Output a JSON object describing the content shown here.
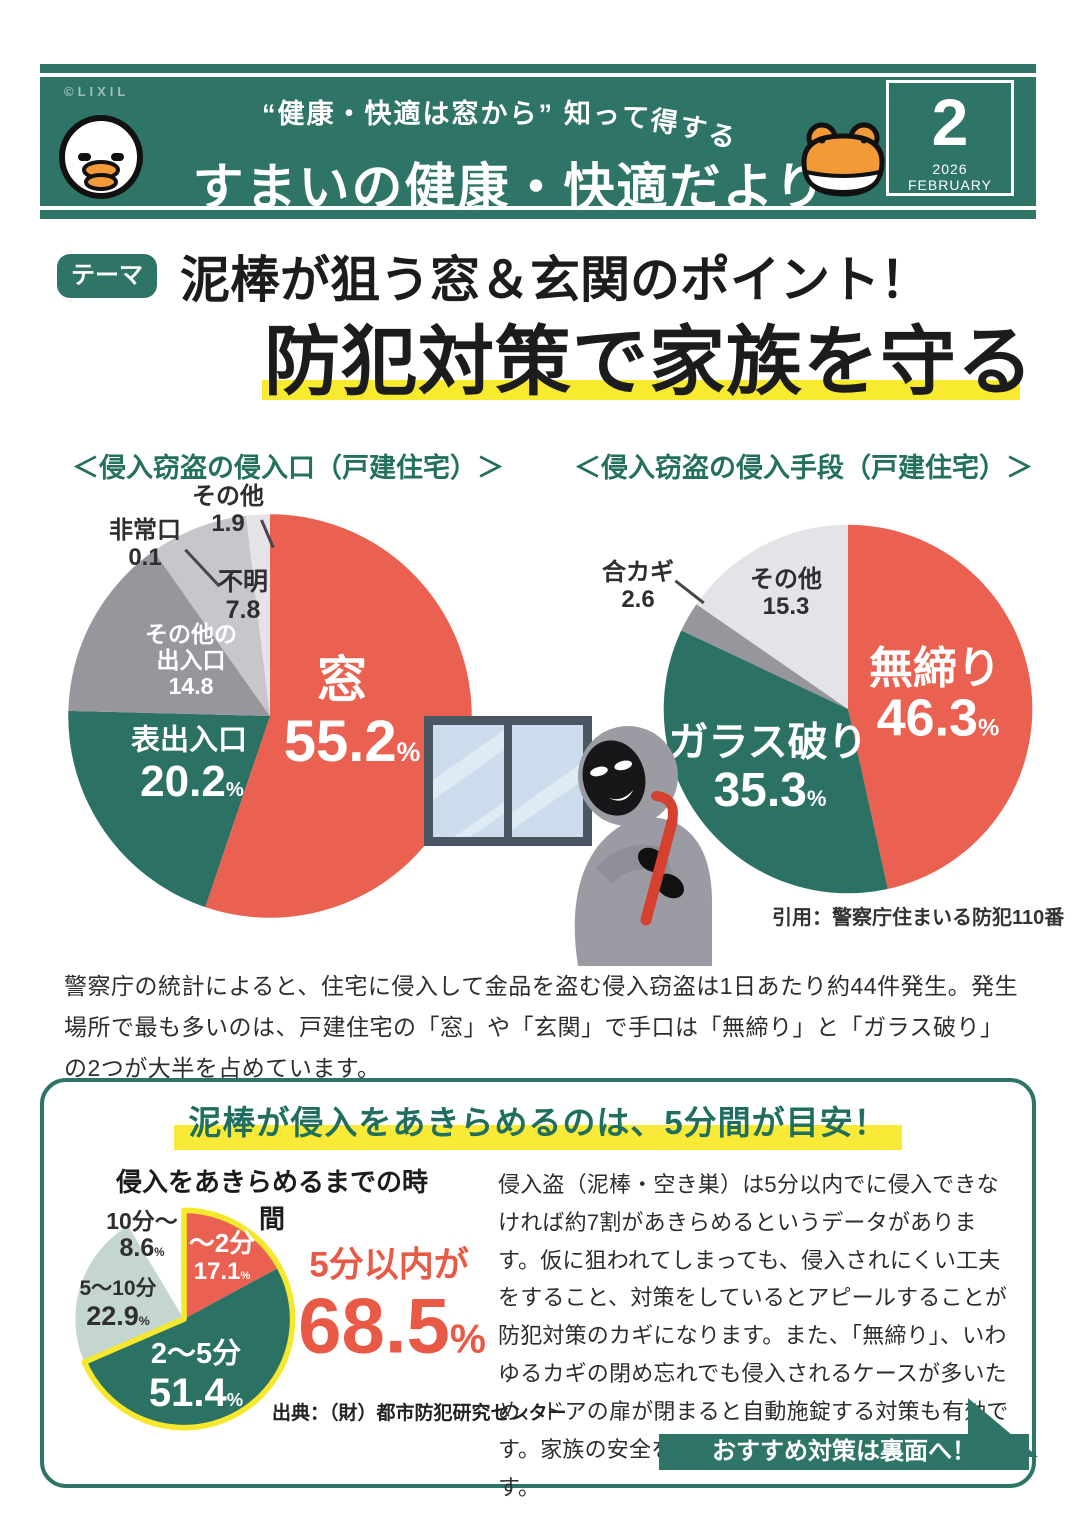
{
  "header": {
    "copyright": "©LIXIL",
    "subtitle_quote": "“健康・快適は窓から”",
    "subtitle_tail": "知って得する",
    "title": "すまいの健康・快適だより",
    "issue_number": "2",
    "issue_month": "2026 FEBRUARY",
    "icons": [
      "duck-mascot",
      "frog-mascot"
    ]
  },
  "theme": {
    "badge": "テーマ",
    "title_line1": "泥棒が狙う窓＆玄関のポイント！",
    "title_line2": "防犯対策で家族を守る"
  },
  "chart_data": [
    {
      "id": "entry-point",
      "type": "pie",
      "title": "＜侵入窃盗の侵入口（戸建住宅）＞",
      "unit": "%",
      "legend_position": "in-slice",
      "slices": [
        {
          "label": "窓",
          "value": 55.2,
          "color": "#ea6151"
        },
        {
          "label": "表出入口",
          "value": 20.2,
          "color": "#2b7164"
        },
        {
          "label": "その他の出入口",
          "value": 14.8,
          "color": "#98969d"
        },
        {
          "label": "非常口",
          "value": 0.1,
          "color": "#b9b8bd"
        },
        {
          "label": "不明",
          "value": 7.8,
          "color": "#c7c6cb"
        },
        {
          "label": "その他",
          "value": 1.9,
          "color": "#e4e3e7"
        }
      ],
      "label_lines": {
        "other_door_l1": "その他の",
        "other_door_l2": "出入口"
      }
    },
    {
      "id": "method",
      "type": "pie",
      "title": "＜侵入窃盗の侵入手段（戸建住宅）＞",
      "unit": "%",
      "legend_position": "in-slice",
      "slices": [
        {
          "label": "無締り",
          "value": 46.3,
          "color": "#ea6151"
        },
        {
          "label": "ガラス破り",
          "value": 35.3,
          "color": "#2b7164"
        },
        {
          "label": "合カギ",
          "value": 2.6,
          "color": "#98969d"
        },
        {
          "label": "その他",
          "value": 15.3,
          "color": "#e4e3e7"
        }
      ]
    },
    {
      "id": "give-up-time",
      "type": "pie",
      "title": "侵入をあきらめるまでの時間",
      "unit": "%",
      "legend_position": "in-slice",
      "slices": [
        {
          "label": "〜2分",
          "value": 17.1,
          "color": "#ea6151"
        },
        {
          "label": "2〜5分",
          "value": 51.4,
          "color": "#2b7164"
        },
        {
          "label": "5〜10分",
          "value": 22.9,
          "color": "#c5d6d0"
        },
        {
          "label": "10分〜",
          "value": 8.6,
          "color": "#ffffff"
        }
      ],
      "highlight": {
        "fraction": 0.685,
        "color": "#f6e82c",
        "label": "5分以内が",
        "value": "68.5",
        "unit": "%"
      },
      "source": "出典：（財）都市防犯研究センター"
    }
  ],
  "attribution": "引用：警察庁住まいる防犯110番",
  "intro_paragraph": "警察庁の統計によると、住宅に侵入して金品を盗む侵入窃盗は1日あたり約44件発生。発生場所で最も多いのは、戸建住宅の「窓」や「玄関」で手口は「無締り」と「ガラス破り」の2つが大半を占めています。",
  "panel": {
    "title": "泥棒が侵入をあきらめるのは、5分間が目安！",
    "paragraph": "侵入盗（泥棒・空き巣）は5分以内でに侵入できなければ約7割があきらめるというデータがあります。仮に狙われてしまっても、侵入されにくい工夫をすること、対策をしているとアピールすることが防犯対策のカギになります。また、「無締り」、いわゆるカギの閉め忘れでも侵入されるケースが多いため、ドアの扉が閉まると自動施錠する対策も有効です。家族の安全を守るには日頃の備えが重要なのです。",
    "footer_banner": "おすすめ対策は裏面へ！"
  },
  "colors": {
    "brand_teal": "#2e7467",
    "accent_red": "#ea6151",
    "highlight_yellow": "#f8ea36",
    "gray_mid": "#98969d",
    "gray_light": "#c7c6cb",
    "gray_lightest": "#e4e3e7",
    "sage": "#c5d6d0",
    "text_dark": "#1c1c1c"
  }
}
